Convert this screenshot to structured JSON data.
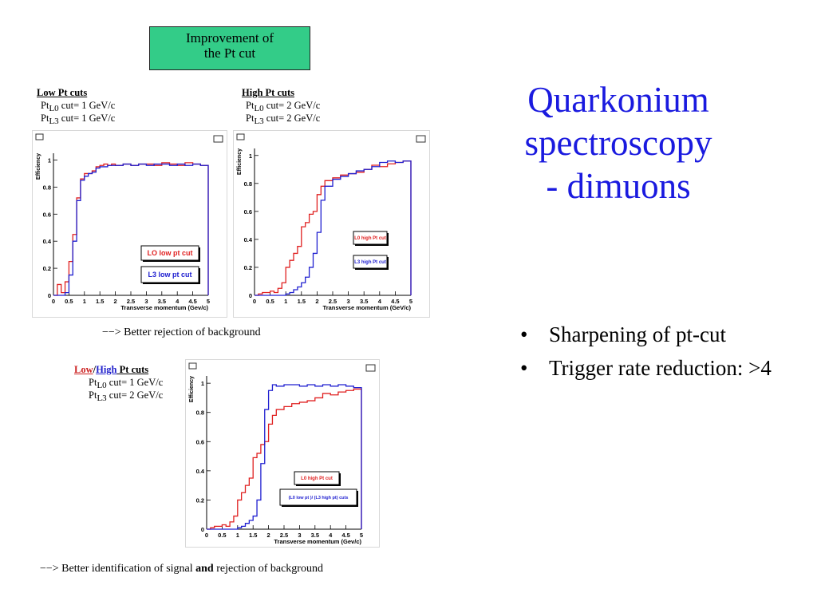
{
  "slide": {
    "title_lines": [
      "Quarkonium",
      "spectroscopy",
      "- dimuons"
    ],
    "title_color": "#1a1adf",
    "improvement_box": {
      "line1": "Improvement of",
      "line2": "the Pt cut",
      "color": "#33cc88"
    },
    "bullets": [
      "Sharpening of pt-cut",
      "Trigger rate reduction: >4"
    ]
  },
  "panels": {
    "low": {
      "heading": "Low Pt cuts",
      "l0": {
        "pt": "Pt",
        "sub": "L0",
        "rest": " cut= 1 GeV/c"
      },
      "l3": {
        "pt": "Pt",
        "sub": "L3",
        "rest": " cut= 1 GeV/c"
      }
    },
    "high": {
      "heading": "High Pt cuts",
      "l0": {
        "pt": "Pt",
        "sub": "L0",
        "rest": " cut= 2 GeV/c"
      },
      "l3": {
        "pt": "Pt",
        "sub": "L3",
        "rest": " cut= 2 GeV/c"
      }
    },
    "mixed": {
      "heading_low": "Low",
      "heading_sep": "/",
      "heading_high": "High",
      "heading_rest": " Pt cuts",
      "low_color": "#cc2222",
      "high_color": "#2222cc",
      "l0": {
        "pt": "Pt",
        "sub": "L0",
        "rest": " cut= 1 GeV/c"
      },
      "l3": {
        "pt": "Pt",
        "sub": "L3",
        "rest": " cut= 2 GeV/c"
      }
    }
  },
  "captions": {
    "top": "−−> Better rejection of background",
    "bottom_pre": "−−> Better identification of signal ",
    "bottom_bold": "and",
    "bottom_post": " rejection of background"
  },
  "chart_data": [
    {
      "type": "line",
      "xlabel": "Transverse momentum (Gev/c)",
      "ylabel": "Efficiency",
      "xlim": [
        0,
        5
      ],
      "ylim": [
        0,
        1.05
      ],
      "xticks": [
        "0",
        "0.5",
        "1",
        "1.5",
        "2",
        "2.5",
        "3",
        "3.5",
        "4",
        "4.5",
        "5"
      ],
      "yticks": [
        "0",
        "0.2",
        "0.4",
        "0.6",
        "0.8",
        "1"
      ],
      "grid": false,
      "series": [
        {
          "name": "LO  low pt cut",
          "color": "#e02020",
          "x": [
            0,
            0.125,
            0.25,
            0.375,
            0.5,
            0.625,
            0.75,
            0.875,
            1,
            1.125,
            1.25,
            1.375,
            1.5,
            1.625,
            1.75,
            1.875,
            2,
            2.25,
            2.5,
            2.75,
            3,
            3.25,
            3.5,
            3.75,
            4,
            4.25,
            4.5,
            4.75,
            5
          ],
          "y": [
            0,
            0.08,
            0.02,
            0.1,
            0.25,
            0.45,
            0.72,
            0.86,
            0.9,
            0.9,
            0.92,
            0.95,
            0.96,
            0.97,
            0.96,
            0.97,
            0.96,
            0.97,
            0.96,
            0.97,
            0.97,
            0.96,
            0.98,
            0.97,
            0.96,
            0.98,
            0.97,
            0.96,
            0
          ]
        },
        {
          "name": "L3 low pt cut",
          "color": "#2020d0",
          "x": [
            0,
            0.125,
            0.25,
            0.375,
            0.5,
            0.625,
            0.75,
            0.875,
            1,
            1.125,
            1.25,
            1.375,
            1.5,
            1.625,
            1.75,
            1.875,
            2,
            2.25,
            2.5,
            2.75,
            3,
            3.25,
            3.5,
            3.75,
            4,
            4.25,
            4.5,
            4.75,
            5
          ],
          "y": [
            0,
            0,
            0,
            0.02,
            0.15,
            0.4,
            0.7,
            0.85,
            0.88,
            0.9,
            0.91,
            0.94,
            0.95,
            0.95,
            0.96,
            0.96,
            0.96,
            0.97,
            0.96,
            0.97,
            0.96,
            0.97,
            0.97,
            0.96,
            0.97,
            0.96,
            0.97,
            0.96,
            0
          ]
        }
      ]
    },
    {
      "type": "line",
      "xlabel": "Transverse momentum (GeV/c)",
      "ylabel": "Efficiency",
      "xlim": [
        0,
        5
      ],
      "ylim": [
        0,
        1.05
      ],
      "xticks": [
        "0",
        "0.5",
        "1",
        "1.5",
        "2",
        "2.5",
        "3",
        "3.5",
        "4",
        "4.5",
        "5"
      ],
      "yticks": [
        "0",
        "0.2",
        "0.4",
        "0.6",
        "0.8",
        "1"
      ],
      "grid": false,
      "series": [
        {
          "name": "L0 high Pt cut",
          "color": "#e02020",
          "x": [
            0,
            0.125,
            0.25,
            0.375,
            0.5,
            0.625,
            0.75,
            0.875,
            1,
            1.125,
            1.25,
            1.375,
            1.5,
            1.625,
            1.75,
            1.875,
            2,
            2.125,
            2.25,
            2.5,
            2.75,
            3,
            3.25,
            3.5,
            3.75,
            4,
            4.25,
            4.5,
            4.75,
            5
          ],
          "y": [
            0,
            0.01,
            0.02,
            0.02,
            0.03,
            0.02,
            0.05,
            0.09,
            0.2,
            0.25,
            0.3,
            0.35,
            0.49,
            0.52,
            0.58,
            0.6,
            0.72,
            0.78,
            0.82,
            0.84,
            0.86,
            0.87,
            0.88,
            0.9,
            0.93,
            0.92,
            0.94,
            0.95,
            0.96,
            0
          ]
        },
        {
          "name": "L3 high Pt cut",
          "color": "#2020d0",
          "x": [
            0,
            0.125,
            0.25,
            0.375,
            0.5,
            0.625,
            0.75,
            0.875,
            1,
            1.125,
            1.25,
            1.375,
            1.5,
            1.625,
            1.75,
            1.875,
            2,
            2.125,
            2.25,
            2.5,
            2.75,
            3,
            3.25,
            3.5,
            3.75,
            4,
            4.25,
            4.5,
            4.75,
            5
          ],
          "y": [
            0,
            0,
            0,
            0,
            0,
            0,
            0,
            0,
            0.01,
            0.02,
            0.04,
            0.06,
            0.09,
            0.13,
            0.2,
            0.3,
            0.45,
            0.68,
            0.78,
            0.83,
            0.85,
            0.87,
            0.89,
            0.9,
            0.92,
            0.95,
            0.96,
            0.95,
            0.96,
            0
          ]
        }
      ]
    },
    {
      "type": "line",
      "xlabel": "Transverse momentum (Gev/c)",
      "ylabel": "Efficiency",
      "xlim": [
        0,
        5
      ],
      "ylim": [
        0,
        1.05
      ],
      "xticks": [
        "0",
        "0.5",
        "1",
        "1.5",
        "2",
        "2.5",
        "3",
        "3.5",
        "4",
        "4.5",
        "5"
      ],
      "yticks": [
        "0",
        "0.2",
        "0.4",
        "0.6",
        "0.8",
        "1"
      ],
      "grid": false,
      "series": [
        {
          "name": "L0 high Pt cut",
          "color": "#e02020",
          "x": [
            0,
            0.125,
            0.25,
            0.375,
            0.5,
            0.625,
            0.75,
            0.875,
            1,
            1.125,
            1.25,
            1.375,
            1.5,
            1.625,
            1.75,
            1.875,
            2,
            2.125,
            2.25,
            2.5,
            2.75,
            3,
            3.25,
            3.5,
            3.75,
            4,
            4.25,
            4.5,
            4.75,
            5
          ],
          "y": [
            0,
            0.01,
            0.02,
            0.02,
            0.03,
            0.02,
            0.05,
            0.09,
            0.2,
            0.25,
            0.3,
            0.35,
            0.49,
            0.52,
            0.58,
            0.6,
            0.72,
            0.78,
            0.82,
            0.84,
            0.86,
            0.87,
            0.88,
            0.9,
            0.93,
            0.92,
            0.94,
            0.95,
            0.96,
            0
          ]
        },
        {
          "name": "(L0 low pt )/ (L3 high pt) cuts",
          "color": "#2020d0",
          "x": [
            0,
            0.125,
            0.25,
            0.375,
            0.5,
            0.625,
            0.75,
            0.875,
            1,
            1.125,
            1.25,
            1.375,
            1.5,
            1.625,
            1.75,
            1.875,
            2,
            2.125,
            2.25,
            2.5,
            2.75,
            3,
            3.25,
            3.5,
            3.75,
            4,
            4.25,
            4.5,
            4.75,
            5
          ],
          "y": [
            0,
            0,
            0,
            0,
            0,
            0,
            0,
            0,
            0.01,
            0.02,
            0.04,
            0.06,
            0.09,
            0.2,
            0.45,
            0.82,
            0.95,
            0.99,
            0.98,
            0.99,
            0.99,
            0.98,
            0.99,
            0.98,
            0.99,
            0.98,
            0.99,
            0.98,
            0.97,
            0
          ]
        }
      ]
    }
  ]
}
